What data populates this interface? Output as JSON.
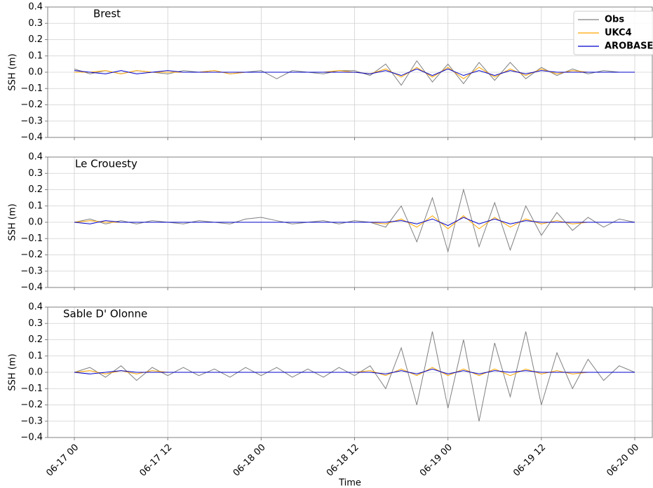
{
  "chart_data": [
    {
      "type": "line",
      "title": "Brest",
      "ylabel": "SSH (m)",
      "legend": "upper right",
      "x": [
        "06-17 00",
        "06-17 02",
        "06-17 04",
        "06-17 06",
        "06-17 08",
        "06-17 10",
        "06-17 12",
        "06-17 14",
        "06-17 16",
        "06-17 18",
        "06-17 20",
        "06-17 22",
        "06-18 00",
        "06-18 02",
        "06-18 04",
        "06-18 06",
        "06-18 08",
        "06-18 10",
        "06-18 12",
        "06-18 14",
        "06-18 16",
        "06-18 18",
        "06-18 20",
        "06-18 22",
        "06-19 00",
        "06-19 02",
        "06-19 04",
        "06-19 06",
        "06-19 08",
        "06-19 10",
        "06-19 12",
        "06-19 14",
        "06-19 16",
        "06-19 18",
        "06-19 20",
        "06-19 22",
        "06-20 00"
      ],
      "xticks": [
        "06-17 00",
        "06-17 12",
        "06-18 00",
        "06-18 12",
        "06-19 00",
        "06-19 12",
        "06-20 00"
      ],
      "ylim": [
        -0.4,
        0.4
      ],
      "yticks": [
        {
          "value": -0.4,
          "label": "−0.4"
        },
        {
          "value": -0.3,
          "label": "−0.3"
        },
        {
          "value": -0.2,
          "label": "−0.2"
        },
        {
          "value": -0.1,
          "label": "−0.1"
        },
        {
          "value": 0,
          "label": "0.0"
        },
        0.1,
        0.2,
        0.3,
        0.4
      ],
      "grid": true,
      "series": [
        {
          "name": "Obs",
          "color": "#808080",
          "values": [
            0.02,
            -0.01,
            0.01,
            -0.01,
            0.01,
            0,
            -0.01,
            0.01,
            0,
            0.01,
            -0.01,
            0,
            0.01,
            -0.04,
            0.01,
            0,
            -0.01,
            0.01,
            0.01,
            -0.02,
            0.05,
            -0.08,
            0.07,
            -0.06,
            0.05,
            -0.07,
            0.06,
            -0.05,
            0.06,
            -0.04,
            0.03,
            -0.02,
            0.02,
            -0.01,
            0.01,
            0,
            0
          ]
        },
        {
          "name": "UKC4",
          "color": "#ffa500",
          "values": [
            0,
            0,
            0.01,
            -0.01,
            0.01,
            0,
            0,
            0,
            0,
            0.01,
            -0.01,
            0,
            0,
            0,
            0,
            0,
            0,
            0.01,
            0,
            -0.01,
            0.02,
            -0.03,
            0.03,
            -0.03,
            0.03,
            -0.04,
            0.03,
            -0.03,
            0.02,
            -0.02,
            0.02,
            -0.01,
            0.01,
            0,
            0,
            0,
            0
          ]
        },
        {
          "name": "AROBASE",
          "color": "#0000cd",
          "values": [
            0.01,
            0,
            -0.01,
            0.01,
            -0.01,
            0,
            0.01,
            0,
            0,
            0,
            0,
            0,
            0,
            0,
            0,
            0,
            0,
            0,
            0,
            -0.01,
            0.01,
            -0.02,
            0.02,
            -0.02,
            0.02,
            -0.02,
            0.01,
            -0.02,
            0.01,
            -0.01,
            0.01,
            0,
            0,
            0,
            0,
            0,
            0
          ]
        }
      ]
    },
    {
      "type": "line",
      "title": "Le Crouesty",
      "ylabel": "SSH (m)",
      "x": [
        "06-17 00",
        "06-17 02",
        "06-17 04",
        "06-17 06",
        "06-17 08",
        "06-17 10",
        "06-17 12",
        "06-17 14",
        "06-17 16",
        "06-17 18",
        "06-17 20",
        "06-17 22",
        "06-18 00",
        "06-18 02",
        "06-18 04",
        "06-18 06",
        "06-18 08",
        "06-18 10",
        "06-18 12",
        "06-18 14",
        "06-18 16",
        "06-18 18",
        "06-18 20",
        "06-18 22",
        "06-19 00",
        "06-19 02",
        "06-19 04",
        "06-19 06",
        "06-19 08",
        "06-19 10",
        "06-19 12",
        "06-19 14",
        "06-19 16",
        "06-19 18",
        "06-19 20",
        "06-19 22",
        "06-20 00"
      ],
      "xticks": [
        "06-17 00",
        "06-17 12",
        "06-18 00",
        "06-18 12",
        "06-19 00",
        "06-19 12",
        "06-20 00"
      ],
      "ylim": [
        -0.4,
        0.4
      ],
      "yticks": [
        {
          "value": -0.4,
          "label": "−0.4"
        },
        {
          "value": -0.3,
          "label": "−0.3"
        },
        {
          "value": -0.2,
          "label": "−0.2"
        },
        {
          "value": -0.1,
          "label": "−0.1"
        },
        {
          "value": 0,
          "label": "0.0"
        },
        0.1,
        0.2,
        0.3,
        0.4
      ],
      "grid": true,
      "series": [
        {
          "name": "Obs",
          "color": "#808080",
          "values": [
            0,
            0.02,
            -0.01,
            0.01,
            -0.01,
            0.01,
            0,
            -0.01,
            0.01,
            0,
            -0.01,
            0.02,
            0.03,
            0.01,
            -0.01,
            0,
            0.01,
            -0.01,
            0.01,
            0,
            -0.03,
            0.1,
            -0.12,
            0.15,
            -0.18,
            0.2,
            -0.15,
            0.12,
            -0.17,
            0.1,
            -0.08,
            0.06,
            -0.05,
            0.03,
            -0.03,
            0.02,
            0
          ]
        },
        {
          "name": "UKC4",
          "color": "#ffa500",
          "values": [
            0,
            0.01,
            0,
            0,
            0,
            0,
            0,
            0,
            0,
            0,
            0,
            0,
            0,
            0,
            0,
            0,
            0,
            0,
            0,
            0,
            -0.01,
            0.02,
            -0.03,
            0.04,
            -0.04,
            0.04,
            -0.04,
            0.03,
            -0.03,
            0.02,
            -0.01,
            0.01,
            -0.01,
            0,
            0,
            0,
            0
          ]
        },
        {
          "name": "AROBASE",
          "color": "#0000cd",
          "values": [
            0,
            -0.01,
            0.01,
            0,
            0,
            0,
            0,
            0,
            0,
            0,
            0,
            0,
            0,
            0,
            0,
            0,
            0,
            0,
            0,
            0,
            0,
            0.01,
            -0.01,
            0.02,
            -0.02,
            0.03,
            -0.01,
            0.02,
            -0.01,
            0.01,
            0,
            0,
            0,
            0,
            0,
            0,
            0
          ]
        }
      ]
    },
    {
      "type": "line",
      "title": "Sable D' Olonne",
      "ylabel": "SSH (m)",
      "xlabel": "Time",
      "x": [
        "06-17 00",
        "06-17 02",
        "06-17 04",
        "06-17 06",
        "06-17 08",
        "06-17 10",
        "06-17 12",
        "06-17 14",
        "06-17 16",
        "06-17 18",
        "06-17 20",
        "06-17 22",
        "06-18 00",
        "06-18 02",
        "06-18 04",
        "06-18 06",
        "06-18 08",
        "06-18 10",
        "06-18 12",
        "06-18 14",
        "06-18 16",
        "06-18 18",
        "06-18 20",
        "06-18 22",
        "06-19 00",
        "06-19 02",
        "06-19 04",
        "06-19 06",
        "06-19 08",
        "06-19 10",
        "06-19 12",
        "06-19 14",
        "06-19 16",
        "06-19 18",
        "06-19 20",
        "06-19 22",
        "06-20 00"
      ],
      "xticks": [
        "06-17 00",
        "06-17 12",
        "06-18 00",
        "06-18 12",
        "06-19 00",
        "06-19 12",
        "06-20 00"
      ],
      "ylim": [
        -0.4,
        0.4
      ],
      "yticks": [
        {
          "value": -0.4,
          "label": "−0.4"
        },
        {
          "value": -0.3,
          "label": "−0.3"
        },
        {
          "value": -0.2,
          "label": "−0.2"
        },
        {
          "value": -0.1,
          "label": "−0.1"
        },
        {
          "value": 0,
          "label": "0.0"
        },
        0.1,
        0.2,
        0.3,
        0.4
      ],
      "grid": true,
      "series": [
        {
          "name": "Obs",
          "color": "#808080",
          "values": [
            0,
            0.03,
            -0.03,
            0.04,
            -0.05,
            0.03,
            -0.02,
            0.03,
            -0.02,
            0.02,
            -0.03,
            0.03,
            -0.02,
            0.03,
            -0.03,
            0.02,
            -0.03,
            0.03,
            -0.02,
            0.04,
            -0.1,
            0.15,
            -0.2,
            0.25,
            -0.22,
            0.2,
            -0.3,
            0.18,
            -0.15,
            0.25,
            -0.2,
            0.12,
            -0.1,
            0.08,
            -0.05,
            0.04,
            0
          ]
        },
        {
          "name": "UKC4",
          "color": "#ffa500",
          "values": [
            0,
            0.01,
            -0.01,
            0.01,
            -0.01,
            0.01,
            0,
            0,
            0,
            0,
            0,
            0,
            0,
            0,
            0,
            0,
            0,
            0,
            0,
            0.01,
            -0.02,
            0.02,
            -0.02,
            0.03,
            -0.02,
            0.02,
            -0.02,
            0.02,
            -0.02,
            0.02,
            -0.01,
            0.01,
            -0.01,
            0,
            0,
            0,
            0
          ]
        },
        {
          "name": "AROBASE",
          "color": "#0000cd",
          "values": [
            0,
            -0.01,
            0,
            0.01,
            0,
            0,
            0,
            0,
            0,
            0,
            0,
            0,
            0,
            0,
            0,
            0,
            0,
            0,
            0,
            0,
            -0.01,
            0.01,
            -0.01,
            0.02,
            -0.01,
            0.01,
            -0.01,
            0.01,
            0,
            0.01,
            0,
            0,
            0,
            0,
            0,
            0,
            0
          ]
        }
      ]
    }
  ]
}
